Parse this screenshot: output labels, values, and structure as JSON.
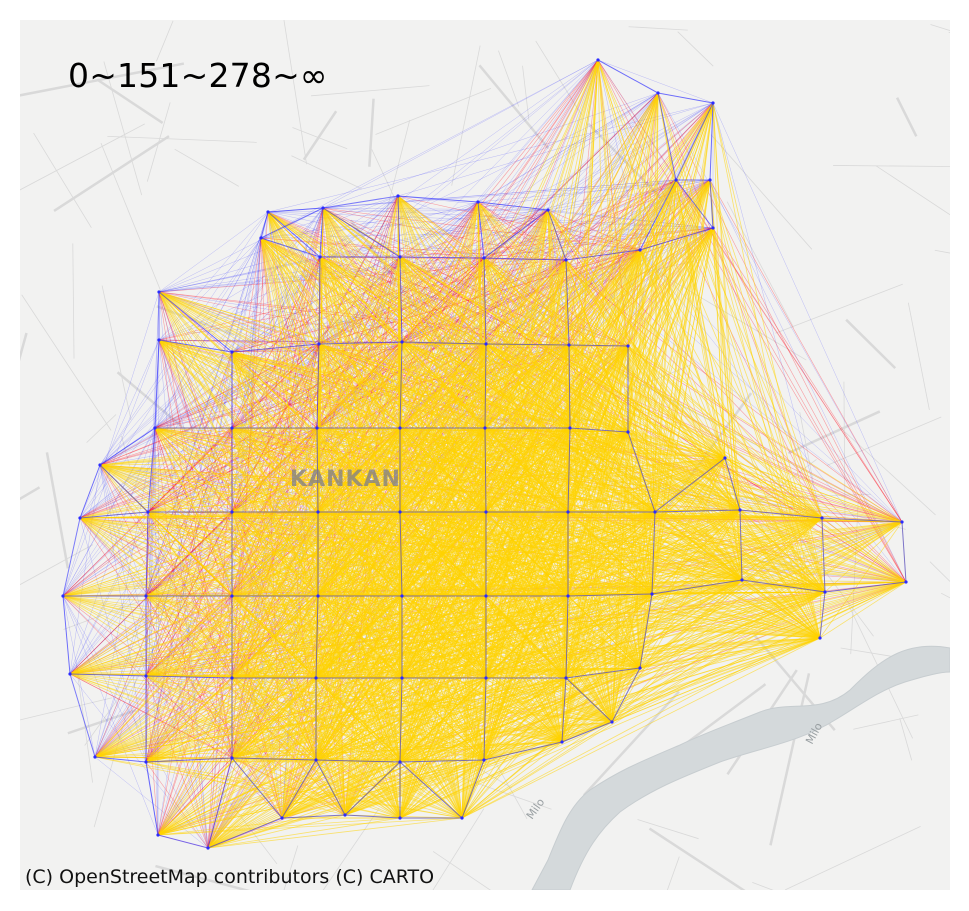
{
  "legend": {
    "bins_label": "0~151~278~∞",
    "bin_colors": [
      "#2b2bff",
      "#ff1a2b",
      "#ffd400"
    ]
  },
  "map": {
    "city_label": "KANKAN",
    "river_labels": [
      "Milo",
      "Milo"
    ],
    "attribution": "(C) OpenStreetMap contributors (C) CARTO",
    "colors": {
      "background": "#f2f2f1",
      "streets": "#d9d9d9",
      "river": "#d4d9db",
      "low_flow": "#2b2bff",
      "mid_flow": "#ff1a2b",
      "high_flow": "#ffd400"
    }
  }
}
